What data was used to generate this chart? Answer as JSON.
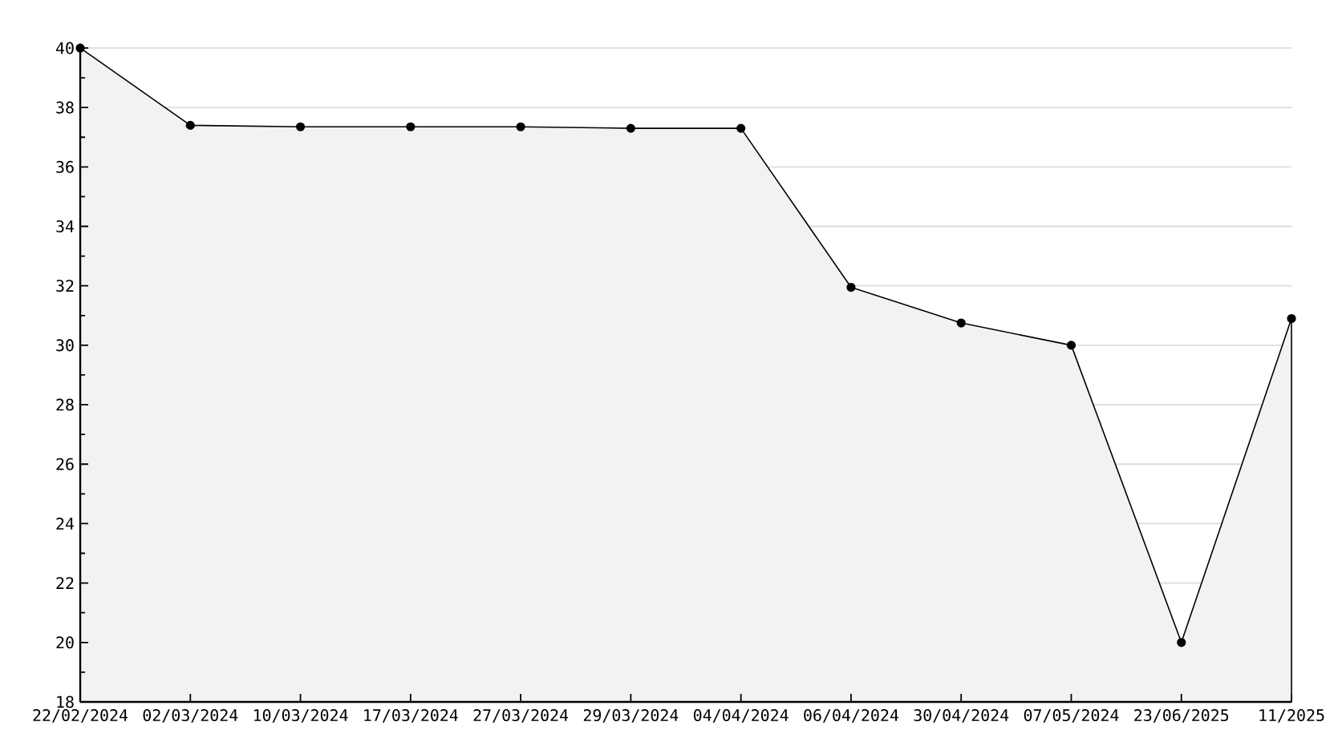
{
  "chart_data": {
    "type": "area",
    "categories": [
      "22/02/2024",
      "02/03/2024",
      "10/03/2024",
      "17/03/2024",
      "27/03/2024",
      "29/03/2024",
      "04/04/2024",
      "06/04/2024",
      "30/04/2024",
      "07/05/2024",
      "23/06/2025",
      "11/2025"
    ],
    "values": [
      40,
      37.4,
      37.35,
      37.35,
      37.35,
      37.3,
      37.3,
      31.95,
      30.75,
      30,
      20,
      30.9
    ],
    "color": "#f2f2f2",
    "ylim": [
      18,
      40
    ],
    "yticks": [
      18,
      {
        "value": 19,
        "label": null
      },
      20,
      {
        "value": 21,
        "label": null
      },
      22,
      {
        "value": 23,
        "label": null
      },
      24,
      {
        "value": 25,
        "label": null
      },
      26,
      {
        "value": 27,
        "label": null
      },
      28,
      {
        "value": 29,
        "label": null
      },
      30,
      {
        "value": 31,
        "label": null
      },
      32,
      {
        "value": 33,
        "label": null
      },
      34,
      {
        "value": 35,
        "label": null
      },
      36,
      {
        "value": 37,
        "label": null
      },
      38,
      {
        "value": 39,
        "label": null
      },
      40
    ],
    "grid": "y",
    "marker": "circle",
    "line_style": "solid"
  }
}
